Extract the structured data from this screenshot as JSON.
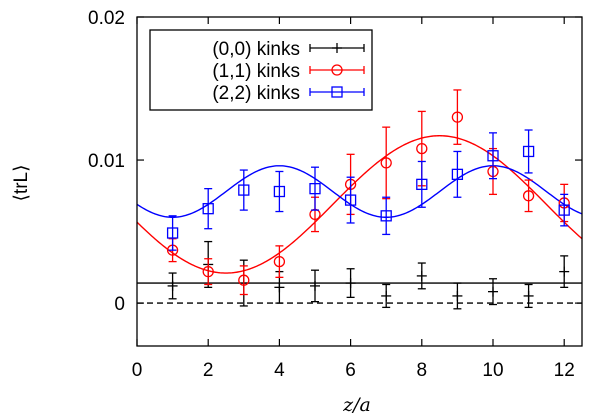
{
  "chart_data": {
    "type": "scatter",
    "title": "",
    "xlabel": "z/a",
    "ylabel": "⟨trL⟩",
    "xlim": [
      0,
      12.5
    ],
    "ylim": [
      -0.003,
      0.02
    ],
    "x_ticks": [
      0,
      2,
      4,
      6,
      8,
      10,
      12
    ],
    "x_tick_labels": [
      "0",
      "2",
      "4",
      "6",
      "8",
      "10",
      "12"
    ],
    "y_ticks": [
      0,
      0.01,
      0.02
    ],
    "y_tick_labels": [
      "0",
      "0.01",
      "0.02"
    ],
    "grid": false,
    "legend_position": "top-left",
    "series": [
      {
        "name": "(0,0) kinks",
        "color": "#000000",
        "marker": "plus",
        "x": [
          1,
          2,
          3,
          4,
          5,
          6,
          7,
          8,
          9,
          10,
          11,
          12
        ],
        "y": [
          0.0012,
          0.0027,
          0.0014,
          0.0011,
          0.0012,
          0.0014,
          0.0005,
          0.0019,
          0.0005,
          0.0008,
          0.0005,
          0.0022
        ],
        "err": [
          0.0009,
          0.0016,
          0.0016,
          0.0011,
          0.0011,
          0.001,
          0.0008,
          0.0009,
          0.0009,
          0.0009,
          0.0008,
          0.0011
        ],
        "fit": {
          "style": "solid",
          "kind": "constant",
          "value": 0.0014
        }
      },
      {
        "name": "(1,1) kinks",
        "color": "#ff0000",
        "marker": "circle",
        "x": [
          1,
          2,
          3,
          4,
          5,
          6,
          7,
          8,
          9,
          10,
          11,
          12
        ],
        "y": [
          0.0037,
          0.0022,
          0.0016,
          0.0029,
          0.0062,
          0.0083,
          0.0098,
          0.0108,
          0.013,
          0.0092,
          0.0075,
          0.007
        ],
        "err": [
          0.0008,
          0.0009,
          0.001,
          0.0011,
          0.0012,
          0.0021,
          0.0025,
          0.0026,
          0.0019,
          0.0016,
          0.0011,
          0.0013
        ],
        "fit": {
          "style": "solid",
          "kind": "cosine",
          "offset": 0.0069,
          "amplitude": 0.0048,
          "period": 12,
          "peak_at": 8.5
        }
      },
      {
        "name": "(2,2) kinks",
        "color": "#0000ff",
        "marker": "square",
        "x": [
          1,
          2,
          3,
          4,
          5,
          6,
          7,
          8,
          9,
          10,
          11,
          12
        ],
        "y": [
          0.0049,
          0.0066,
          0.0079,
          0.0078,
          0.008,
          0.0072,
          0.0061,
          0.0083,
          0.009,
          0.0103,
          0.0106,
          0.0065
        ],
        "err": [
          0.0012,
          0.0014,
          0.0014,
          0.0014,
          0.0015,
          0.0016,
          0.0013,
          0.0016,
          0.0016,
          0.0016,
          0.0015,
          0.0011
        ],
        "fit": {
          "style": "solid",
          "kind": "cosine",
          "offset": 0.0078,
          "amplitude": 0.0018,
          "period": 6,
          "peak_at": 4
        }
      }
    ],
    "reference_line": {
      "y": 0,
      "style": "dashed",
      "color": "#000000"
    }
  }
}
